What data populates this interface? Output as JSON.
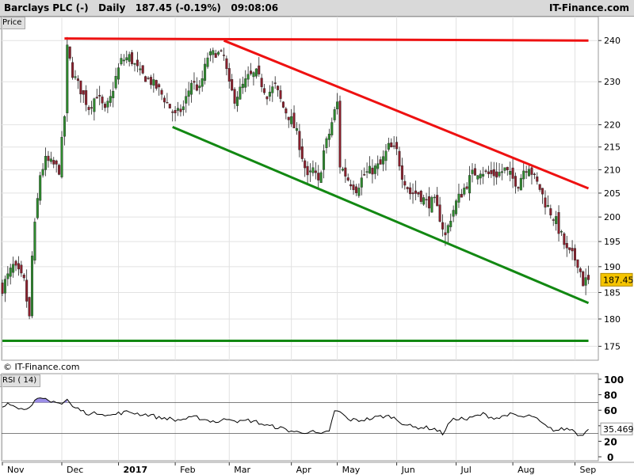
{
  "header": {
    "title": "Barclays PLC (-)   Daily   187.45 (-0.19%)   09:08:06",
    "brand": "IT-Finance.com"
  },
  "price_panel": {
    "tag": "Price",
    "watermark": "© IT-Finance.com",
    "last_price_label": "187.45"
  },
  "rsi_panel": {
    "tag": "RSI ( 14)",
    "last_value_label": "35.469"
  },
  "colors": {
    "up_candle": "#2e8b2e",
    "down_candle": "#8b1f2c",
    "resistance": "#ee1111",
    "support": "#128812",
    "price_flag": "#f5c400",
    "rsi_line": "#000000",
    "rsi_overbought_fill": "#9c8ee8",
    "grid": "#e2e2e2"
  },
  "chart_data": [
    {
      "type": "candlestick",
      "title": "Barclays PLC (-) Daily",
      "ylabel": "Price",
      "ylim": [
        172.5,
        246
      ],
      "y_scale": "log",
      "yticks": [
        175,
        180,
        185,
        190,
        195,
        200,
        205,
        210,
        215,
        220,
        230,
        240
      ],
      "x_months": [
        "Nov",
        "Dec",
        "2017",
        "Feb",
        "Mar",
        "Apr",
        "May",
        "Jun",
        "Jul",
        "Aug",
        "Sep"
      ],
      "x_month_start_bar": [
        0,
        22,
        43,
        64,
        84,
        107,
        124,
        146,
        168,
        189,
        212
      ],
      "bar_count": 218,
      "last_price": 187.45,
      "close_anchors": [
        [
          0,
          186
        ],
        [
          4,
          190
        ],
        [
          8,
          187
        ],
        [
          10,
          180
        ],
        [
          11,
          192
        ],
        [
          12,
          198
        ],
        [
          14,
          209
        ],
        [
          16,
          212
        ],
        [
          19,
          211
        ],
        [
          21,
          210
        ],
        [
          23,
          222
        ],
        [
          24,
          238
        ],
        [
          26,
          232
        ],
        [
          29,
          228
        ],
        [
          32,
          224
        ],
        [
          35,
          227
        ],
        [
          38,
          223
        ],
        [
          40,
          226
        ],
        [
          42,
          231
        ],
        [
          44,
          235
        ],
        [
          47,
          236
        ],
        [
          51,
          232
        ],
        [
          55,
          230
        ],
        [
          58,
          228
        ],
        [
          61,
          225
        ],
        [
          64,
          222
        ],
        [
          67,
          224
        ],
        [
          70,
          230
        ],
        [
          73,
          228
        ],
        [
          76,
          236
        ],
        [
          79,
          237
        ],
        [
          82,
          236
        ],
        [
          84,
          229
        ],
        [
          86,
          226
        ],
        [
          88,
          228
        ],
        [
          91,
          231
        ],
        [
          94,
          232
        ],
        [
          98,
          227
        ],
        [
          101,
          229
        ],
        [
          104,
          224
        ],
        [
          107,
          221
        ],
        [
          109,
          218
        ],
        [
          111,
          213
        ],
        [
          113,
          208
        ],
        [
          115,
          210
        ],
        [
          117,
          207
        ],
        [
          119,
          214
        ],
        [
          121,
          218
        ],
        [
          123,
          223
        ],
        [
          124,
          225
        ],
        [
          125,
          211
        ],
        [
          128,
          208
        ],
        [
          131,
          206
        ],
        [
          134,
          209
        ],
        [
          137,
          210
        ],
        [
          140,
          211
        ],
        [
          143,
          215
        ],
        [
          146,
          214
        ],
        [
          148,
          209
        ],
        [
          151,
          205
        ],
        [
          154,
          205
        ],
        [
          157,
          203
        ],
        [
          160,
          203
        ],
        [
          162,
          200
        ],
        [
          164,
          196
        ],
        [
          166,
          200
        ],
        [
          168,
          203
        ],
        [
          171,
          206
        ],
        [
          174,
          209
        ],
        [
          177,
          210
        ],
        [
          180,
          209
        ],
        [
          183,
          209
        ],
        [
          186,
          210
        ],
        [
          189,
          208
        ],
        [
          191,
          207
        ],
        [
          193,
          210
        ],
        [
          195,
          211
        ],
        [
          197,
          208
        ],
        [
          199,
          206
        ],
        [
          201,
          203
        ],
        [
          203,
          201
        ],
        [
          205,
          199
        ],
        [
          207,
          196
        ],
        [
          209,
          193
        ],
        [
          211,
          192
        ],
        [
          213,
          191
        ],
        [
          215,
          187
        ],
        [
          217,
          187.45
        ]
      ],
      "trendlines": [
        {
          "name": "resistance (flat)",
          "color": "red",
          "from": [
            23,
            240.5
          ],
          "to": [
            217,
            240
          ]
        },
        {
          "name": "resistance (descending)",
          "color": "red",
          "from": [
            82,
            240
          ],
          "to": [
            217,
            206
          ]
        },
        {
          "name": "support (descending)",
          "color": "green",
          "from": [
            63,
            219.5
          ],
          "to": [
            217,
            183
          ]
        },
        {
          "name": "support (horizontal)",
          "color": "green",
          "from": [
            0,
            176
          ],
          "to": [
            217,
            176
          ]
        }
      ]
    },
    {
      "type": "line",
      "title": "RSI ( 14)",
      "ylim": [
        0,
        100
      ],
      "yticks": [
        0,
        20,
        40,
        60,
        80,
        100
      ],
      "reference_lines": [
        70,
        30
      ],
      "last_value": 35.469,
      "anchors": [
        [
          0,
          62
        ],
        [
          2,
          70
        ],
        [
          4,
          68
        ],
        [
          6,
          64
        ],
        [
          8,
          60
        ],
        [
          10,
          66
        ],
        [
          12,
          72
        ],
        [
          14,
          74
        ],
        [
          16,
          73
        ],
        [
          18,
          70
        ],
        [
          20,
          72
        ],
        [
          22,
          68
        ],
        [
          24,
          74
        ],
        [
          26,
          64
        ],
        [
          28,
          62
        ],
        [
          30,
          58
        ],
        [
          33,
          55
        ],
        [
          36,
          57
        ],
        [
          40,
          53
        ],
        [
          43,
          56
        ],
        [
          47,
          58
        ],
        [
          51,
          55
        ],
        [
          55,
          54
        ],
        [
          58,
          50
        ],
        [
          61,
          50
        ],
        [
          64,
          47
        ],
        [
          68,
          49
        ],
        [
          72,
          51
        ],
        [
          76,
          47
        ],
        [
          80,
          45
        ],
        [
          84,
          50
        ],
        [
          88,
          45
        ],
        [
          91,
          47
        ],
        [
          94,
          45
        ],
        [
          98,
          40
        ],
        [
          102,
          38
        ],
        [
          106,
          34
        ],
        [
          110,
          31
        ],
        [
          114,
          33
        ],
        [
          118,
          28
        ],
        [
          121,
          34
        ],
        [
          123,
          58
        ],
        [
          125,
          58
        ],
        [
          128,
          48
        ],
        [
          132,
          47
        ],
        [
          136,
          49
        ],
        [
          140,
          52
        ],
        [
          144,
          52
        ],
        [
          148,
          44
        ],
        [
          152,
          38
        ],
        [
          156,
          38
        ],
        [
          160,
          36
        ],
        [
          163,
          30
        ],
        [
          166,
          46
        ],
        [
          169,
          50
        ],
        [
          172,
          48
        ],
        [
          175,
          52
        ],
        [
          178,
          55
        ],
        [
          181,
          51
        ],
        [
          184,
          50
        ],
        [
          187,
          55
        ],
        [
          190,
          53
        ],
        [
          193,
          51
        ],
        [
          196,
          53
        ],
        [
          199,
          45
        ],
        [
          202,
          37
        ],
        [
          205,
          34
        ],
        [
          208,
          36
        ],
        [
          211,
          35
        ],
        [
          214,
          27
        ],
        [
          217,
          35.469
        ]
      ]
    }
  ]
}
